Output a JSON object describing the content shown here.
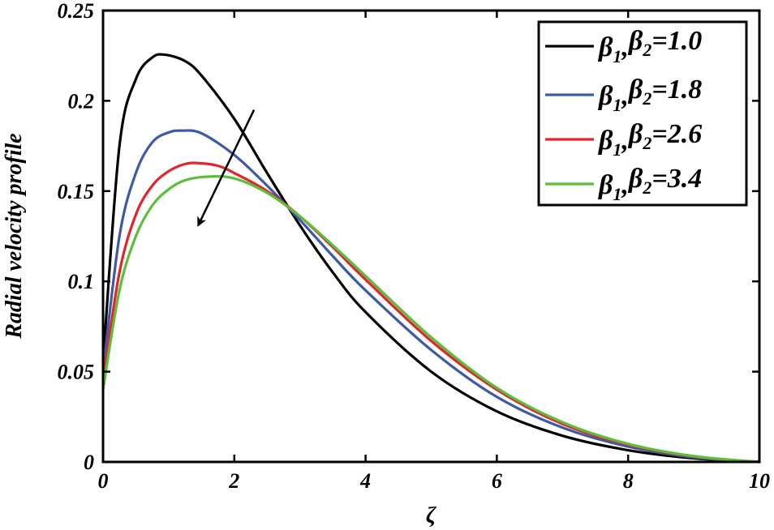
{
  "chart_data": {
    "type": "line",
    "title": "",
    "xlabel": "ζ",
    "ylabel": "Radial velocity profile",
    "xlim": [
      0,
      10
    ],
    "ylim": [
      0,
      0.25
    ],
    "x_ticks": [
      "0",
      "2",
      "4",
      "6",
      "8",
      "10"
    ],
    "y_ticks": [
      "0",
      "0.05",
      "0.1",
      "0.15",
      "0.2",
      "0.25"
    ],
    "grid": false,
    "legend_position": "top-right",
    "legend_prefix": "β",
    "legend_sub1": "1",
    "legend_sub2": "2",
    "series": [
      {
        "name": "β1, β2=1.0",
        "value_label": "=1.0",
        "color": "#000000",
        "x": [
          0,
          0.25,
          0.5,
          0.75,
          0.95,
          1.25,
          1.5,
          2,
          2.5,
          3,
          3.5,
          4,
          5,
          6,
          7,
          8,
          9,
          10
        ],
        "y": [
          0.055,
          0.175,
          0.212,
          0.224,
          0.2255,
          0.222,
          0.214,
          0.19,
          0.16,
          0.131,
          0.105,
          0.083,
          0.05,
          0.028,
          0.0145,
          0.0065,
          0.002,
          0.0
        ]
      },
      {
        "name": "β1, β2=1.8",
        "value_label": "=1.8",
        "color": "#3c5aa8",
        "x": [
          0,
          0.25,
          0.5,
          0.75,
          1,
          1.2,
          1.5,
          2,
          2.5,
          3,
          3.5,
          4,
          5,
          6,
          7,
          8,
          9,
          10
        ],
        "y": [
          0.05,
          0.125,
          0.16,
          0.177,
          0.1825,
          0.1835,
          0.182,
          0.17,
          0.153,
          0.134,
          0.114,
          0.095,
          0.062,
          0.036,
          0.019,
          0.0085,
          0.0025,
          0.0
        ]
      },
      {
        "name": "β1, β2=2.6",
        "value_label": "=2.6",
        "color": "#e0262b",
        "x": [
          0,
          0.25,
          0.5,
          0.75,
          1,
          1.25,
          1.45,
          1.75,
          2,
          2.5,
          3,
          3.5,
          4,
          5,
          6,
          7,
          8,
          9,
          10
        ],
        "y": [
          0.045,
          0.105,
          0.137,
          0.153,
          0.161,
          0.165,
          0.1655,
          0.164,
          0.16,
          0.15,
          0.136,
          0.119,
          0.101,
          0.067,
          0.04,
          0.021,
          0.0095,
          0.003,
          0.0
        ]
      },
      {
        "name": "β1, β2=3.4",
        "value_label": "=3.4",
        "color": "#5cbf3c",
        "x": [
          0,
          0.25,
          0.5,
          0.75,
          1,
          1.25,
          1.6,
          2,
          2.5,
          3,
          3.5,
          4,
          5,
          6,
          7,
          8,
          9,
          10
        ],
        "y": [
          0.04,
          0.095,
          0.125,
          0.142,
          0.151,
          0.156,
          0.158,
          0.157,
          0.149,
          0.136,
          0.12,
          0.103,
          0.069,
          0.041,
          0.022,
          0.01,
          0.0032,
          0.0
        ]
      }
    ],
    "annotations": [
      {
        "type": "arrow",
        "direction": "decreasing peak",
        "from": [
          2.3,
          0.195
        ],
        "to": [
          1.45,
          0.131
        ]
      }
    ]
  }
}
